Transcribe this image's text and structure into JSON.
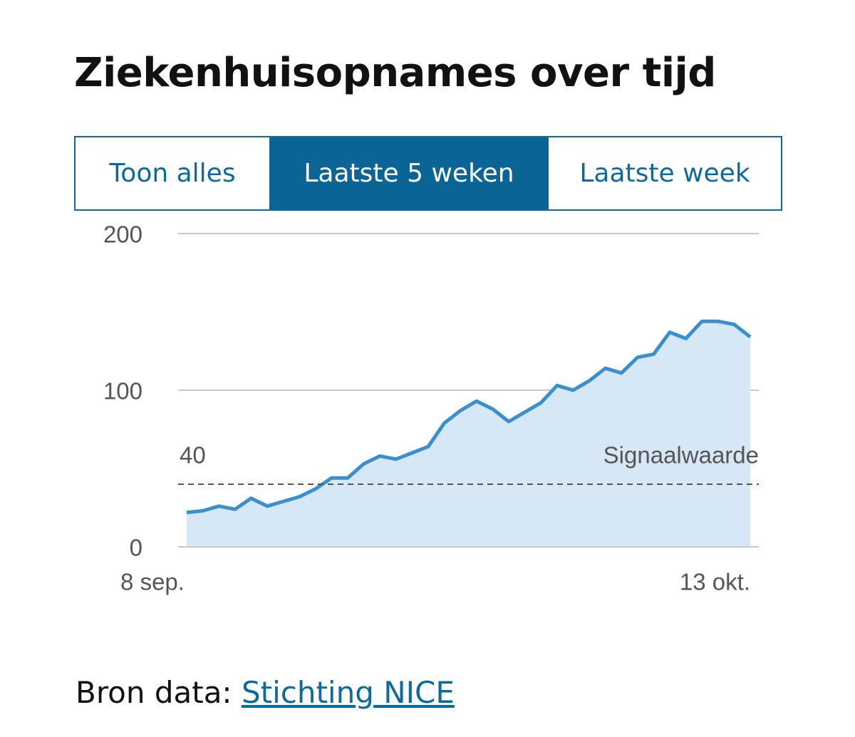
{
  "chart_data": {
    "type": "area",
    "title": "Ziekenhuisopnames over tijd",
    "categories": [
      "8 sep.",
      null,
      null,
      null,
      null,
      null,
      null,
      null,
      null,
      null,
      null,
      null,
      null,
      null,
      null,
      null,
      null,
      null,
      null,
      null,
      null,
      null,
      null,
      null,
      null,
      null,
      null,
      null,
      null,
      null,
      null,
      null,
      null,
      null,
      null,
      "13 okt."
    ],
    "values": [
      22,
      23,
      26,
      24,
      31,
      26,
      29,
      32,
      37,
      44,
      44,
      53,
      58,
      56,
      60,
      64,
      79,
      87,
      93,
      88,
      80,
      86,
      92,
      103,
      100,
      106,
      114,
      111,
      121,
      123,
      137,
      133,
      144,
      144,
      142,
      134
    ],
    "color": "#3a8fd0",
    "fill_color": "#d6e8f5",
    "ylim": [
      0,
      200
    ],
    "yticks": [
      0,
      100,
      200
    ],
    "grid": true,
    "threshold": {
      "value": 40,
      "label": "Signaalwaarde"
    }
  },
  "tabs": [
    {
      "label": "Toon alles",
      "active": false
    },
    {
      "label": "Laatste 5 weken",
      "active": true
    },
    {
      "label": "Laatste week",
      "active": false
    }
  ],
  "source": {
    "prefix": "Bron data:",
    "link": "Stichting NICE"
  }
}
